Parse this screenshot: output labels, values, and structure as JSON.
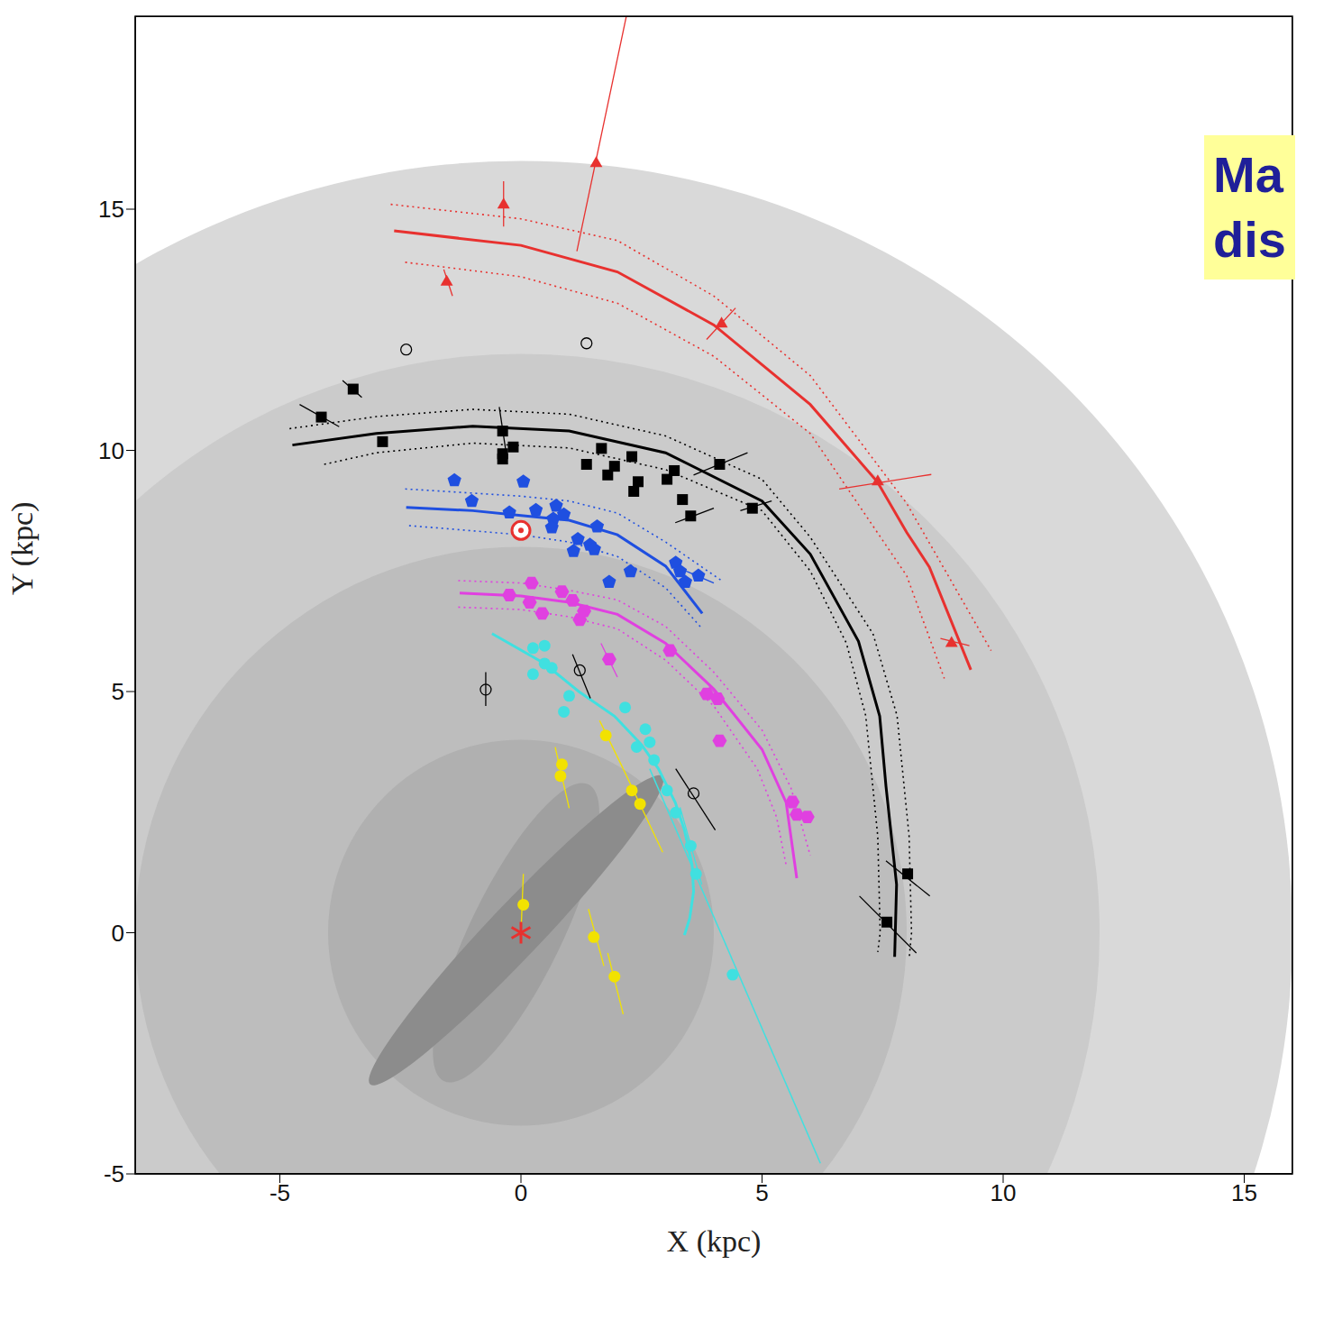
{
  "chart_data": {
    "type": "scatter",
    "x_label": "X (kpc)",
    "y_label": "Y (kpc)",
    "xlim": [
      -8,
      16
    ],
    "ylim": [
      -5,
      19
    ],
    "xticks": [
      -5,
      0,
      5,
      10,
      15
    ],
    "yticks": [
      -5,
      0,
      5,
      10,
      15
    ],
    "grid": false,
    "annotation": [
      "Ma",
      "dis"
    ],
    "regions": [
      {
        "shape": "circle",
        "x": 0,
        "y": 0,
        "radius": 16,
        "color": "#d9d9d9"
      },
      {
        "shape": "circle",
        "x": 0,
        "y": 0,
        "radius": 12,
        "color": "#cbcbcb"
      },
      {
        "shape": "circle",
        "x": 0,
        "y": 0,
        "radius": 8,
        "color": "#bdbdbd"
      },
      {
        "shape": "circle",
        "x": 0,
        "y": 0,
        "radius": 4,
        "color": "#b0b0b0"
      },
      {
        "shape": "ellipse",
        "x": -0.1,
        "y": 0,
        "half_length": 3.42,
        "half_width": 0.95,
        "position_angle": 64,
        "color": "#a0a0a0"
      },
      {
        "shape": "ellipse",
        "x": -0.1,
        "y": 0.05,
        "half_length": 4.4,
        "half_width": 0.55,
        "position_angle": 46.5,
        "color": "#8c8c8c"
      }
    ],
    "curves": [
      {
        "color": "#e8312f",
        "line_style": "solid",
        "x": [
          -2.63,
          0,
          2,
          4,
          6,
          7.39,
          8,
          8.47,
          9.33
        ],
        "y": [
          14.55,
          14.25,
          13.7,
          12.6,
          10.95,
          9.35,
          8.3,
          7.58,
          5.45
        ]
      },
      {
        "color": "#e8312f",
        "line_style": "dotted",
        "x": [
          -2.7,
          0,
          2,
          4,
          6,
          8,
          9.75
        ],
        "y": [
          15.1,
          14.8,
          14.35,
          13.2,
          11.55,
          8.9,
          5.85
        ]
      },
      {
        "color": "#e8312f",
        "line_style": "dotted",
        "x": [
          -2.4,
          0,
          2,
          4,
          6,
          8,
          8.78
        ],
        "y": [
          13.9,
          13.6,
          13.05,
          11.95,
          10.35,
          7.4,
          5.27
        ]
      },
      {
        "color": "#000000",
        "line_style": "solid",
        "x": [
          -4.74,
          -3,
          -1,
          1,
          3,
          5,
          6,
          7,
          7.44,
          7.57,
          7.79,
          7.75
        ],
        "y": [
          10.11,
          10.35,
          10.5,
          10.4,
          9.95,
          8.95,
          7.85,
          6.04,
          4.49,
          3.04,
          1,
          -0.5
        ]
      },
      {
        "color": "#000000",
        "line_style": "dotted",
        "x": [
          -4.8,
          -3,
          -1,
          1,
          3,
          5,
          6,
          7.3,
          7.8,
          8.05,
          8.1,
          8.05
        ],
        "y": [
          10.45,
          10.7,
          10.85,
          10.75,
          10.3,
          9.4,
          8.2,
          6.2,
          4.5,
          2,
          0,
          -0.55
        ]
      },
      {
        "color": "#000000",
        "line_style": "dotted",
        "x": [
          -4.08,
          -3,
          -1,
          1,
          3,
          5,
          6,
          6.75,
          7.15,
          7.4,
          7.45,
          7.4
        ],
        "y": [
          9.71,
          9.95,
          10.15,
          10.05,
          9.6,
          8.75,
          7.5,
          6,
          4.5,
          2,
          0,
          -0.4
        ]
      },
      {
        "color": "#1f4fe0",
        "line_style": "solid",
        "x": [
          -2.38,
          -1,
          0,
          1,
          2,
          3,
          3.76
        ],
        "y": [
          8.82,
          8.75,
          8.65,
          8.55,
          8.25,
          7.6,
          6.62
        ]
      },
      {
        "color": "#1f4fe0",
        "line_style": "dotted",
        "x": [
          -2.4,
          0,
          1,
          2,
          3,
          4.16
        ],
        "y": [
          9.2,
          9.05,
          8.95,
          8.7,
          8.1,
          7.3
        ]
      },
      {
        "color": "#1f4fe0",
        "line_style": "dotted",
        "x": [
          -2.32,
          0,
          1,
          2,
          3,
          3.76
        ],
        "y": [
          8.44,
          8.25,
          8.1,
          7.8,
          7.15,
          6.3
        ]
      },
      {
        "color": "#e040e0",
        "line_style": "solid",
        "x": [
          -1.27,
          0,
          1,
          2,
          3,
          4,
          5,
          5.5,
          5.72
        ],
        "y": [
          7.04,
          6.98,
          6.85,
          6.6,
          6,
          5.05,
          3.8,
          2.7,
          1.13
        ]
      },
      {
        "color": "#e040e0",
        "line_style": "dotted",
        "x": [
          -1.3,
          0,
          1,
          2,
          3,
          4,
          5,
          5.6,
          6
        ],
        "y": [
          7.3,
          7.25,
          7.1,
          6.9,
          6.35,
          5.4,
          4.2,
          3,
          1.6
        ]
      },
      {
        "color": "#e040e0",
        "line_style": "dotted",
        "x": [
          -1.3,
          0,
          1,
          2,
          3,
          4,
          4.9,
          5.3,
          5.5
        ],
        "y": [
          6.75,
          6.7,
          6.55,
          6.3,
          5.65,
          4.7,
          3.4,
          2.4,
          1.4
        ]
      },
      {
        "color": "#40e0e0",
        "line_style": "solid",
        "x": [
          -0.6,
          0.49,
          1.2,
          1.94,
          2.5,
          2.85,
          3.2,
          3.39,
          3.55,
          3.58,
          3.5,
          3.39
        ],
        "y": [
          6.2,
          5.58,
          5,
          4.49,
          3.9,
          3.4,
          2.7,
          2.13,
          1.4,
          0.85,
          0.3,
          -0.05
        ]
      },
      {
        "color": "#40e0e0",
        "line_style": "thin",
        "x": [
          2.67,
          6.21
        ],
        "y": [
          3.4,
          -4.78
        ]
      }
    ],
    "series": [
      {
        "color": "#e8312f",
        "marker": "triangle",
        "x": [
          -0.36,
          1.56,
          -1.54,
          4.16,
          7.4,
          8.93
        ],
        "y": [
          15.09,
          15.95,
          13.49,
          12.62,
          9.35,
          6
        ],
        "error_bars": [
          [
            [
              -0.36,
              15.58
            ],
            [
              -0.36,
              14.64
            ]
          ],
          [
            [
              2.27,
              19.4
            ],
            [
              1.16,
              14.13
            ]
          ],
          [
            [
              -1.6,
              13.75
            ],
            [
              -1.42,
              13.2
            ]
          ],
          [
            [
              4.45,
              12.95
            ],
            [
              3.85,
              12.3
            ]
          ],
          [
            [
              6.6,
              9.2
            ],
            [
              8.51,
              9.5
            ]
          ],
          [
            [
              8.7,
              6.1
            ],
            [
              9.3,
              5.95
            ]
          ]
        ]
      },
      {
        "color": "#000000",
        "marker": "square",
        "x": [
          -3.48,
          -4.14,
          -2.87,
          -0.38,
          -0.38,
          -0.38,
          -0.16,
          1.36,
          1.67,
          1.8,
          1.94,
          2.3,
          2.34,
          2.43,
          3.03,
          3.18,
          3.35,
          3.52,
          4.12,
          4.8,
          8.02,
          7.59
        ],
        "y": [
          11.27,
          10.69,
          10.18,
          10.4,
          9.93,
          9.82,
          10.07,
          9.71,
          10.04,
          9.49,
          9.67,
          9.87,
          9.15,
          9.35,
          9.4,
          9.58,
          8.98,
          8.64,
          9.71,
          8.8,
          1.22,
          0.22
        ],
        "error_bars": [
          [
            [
              -4.59,
              10.95
            ],
            [
              -3.77,
              10.49
            ]
          ],
          [
            [
              -3.7,
              11.45
            ],
            [
              -3.3,
              11.1
            ]
          ],
          [
            [
              -0.45,
              10.9
            ],
            [
              -0.3,
              9.9
            ]
          ],
          [
            [
              3.58,
              9.49
            ],
            [
              4.7,
              9.95
            ]
          ],
          [
            [
              3.2,
              8.5
            ],
            [
              4,
              8.8
            ]
          ],
          [
            [
              4.55,
              8.75
            ],
            [
              5.2,
              8.95
            ]
          ],
          [
            [
              7.57,
              1.49
            ],
            [
              8.48,
              0.76
            ]
          ],
          [
            [
              7.02,
              0.76
            ],
            [
              8.2,
              -0.42
            ]
          ]
        ]
      },
      {
        "color": "#1f4fe0",
        "marker": "pentagon",
        "x": [
          -1.38,
          -1.02,
          0.05,
          -0.24,
          0.31,
          0.73,
          0.67,
          0.64,
          0.89,
          1.09,
          1.18,
          1.43,
          1.58,
          1.52,
          1.83,
          2.27,
          3.21,
          3.3,
          3.68,
          3.41
        ],
        "y": [
          9.38,
          8.95,
          9.35,
          8.71,
          8.76,
          8.85,
          8.58,
          8.4,
          8.67,
          7.91,
          8.16,
          8.04,
          8.42,
          7.95,
          7.27,
          7.49,
          7.67,
          7.49,
          7.4,
          7.27
        ],
        "error_bars": [
          [
            [
              3.3,
              7.55
            ],
            [
              4,
              7.25
            ]
          ]
        ]
      },
      {
        "color": "#e040e0",
        "marker": "hexagon",
        "x": [
          -0.24,
          0.22,
          0.18,
          0.44,
          0.85,
          1.07,
          1.22,
          1.31,
          1.83,
          3.09,
          3.85,
          4.08,
          4.12,
          5.63,
          5.72,
          5.94
        ],
        "y": [
          7,
          7.25,
          6.85,
          6.62,
          7.07,
          6.89,
          6.49,
          6.67,
          5.67,
          5.85,
          4.95,
          4.85,
          3.98,
          2.71,
          2.45,
          2.4
        ],
        "error_bars": [
          [
            [
              1.66,
              6
            ],
            [
              2,
              5.3
            ]
          ],
          [
            [
              3.9,
              5.1
            ],
            [
              4.35,
              4.6
            ]
          ]
        ]
      },
      {
        "color": "#40e0e0",
        "marker": "circle",
        "x": [
          0.49,
          0.49,
          0.25,
          0.64,
          1,
          0.89,
          0.25,
          2.16,
          2.58,
          2.67,
          2.4,
          2.76,
          3.03,
          3.21,
          3.52,
          3.63,
          4.39
        ],
        "y": [
          5.95,
          5.58,
          5.36,
          5.49,
          4.91,
          4.58,
          5.9,
          4.67,
          4.22,
          3.95,
          3.85,
          3.58,
          2.95,
          2.49,
          1.8,
          1.22,
          -0.87
        ],
        "error_bars": [
          [
            [
              3.3,
              2.6
            ],
            [
              3.75,
              1
            ]
          ]
        ]
      },
      {
        "color": "#f2e200",
        "marker": "circle",
        "x": [
          0.85,
          0.82,
          1.76,
          2.3,
          2.47,
          0.05,
          1.51,
          1.94
        ],
        "y": [
          3.49,
          3.25,
          4.09,
          2.95,
          2.67,
          0.58,
          -0.09,
          -0.91
        ],
        "error_bars": [
          [
            [
              0.71,
              3.85
            ],
            [
              1,
              2.58
            ]
          ],
          [
            [
              1.63,
              4.4
            ],
            [
              2.12,
              3.4
            ]
          ],
          [
            [
              2.12,
              3.4
            ],
            [
              2.94,
              1.67
            ]
          ],
          [
            [
              0.05,
              1.22
            ],
            [
              0,
              -0.02
            ]
          ],
          [
            [
              1.4,
              0.49
            ],
            [
              1.72,
              -0.69
            ]
          ],
          [
            [
              1.8,
              -0.42
            ],
            [
              2.12,
              -1.69
            ]
          ]
        ]
      },
      {
        "color": "#000000",
        "marker": "open_circle",
        "x": [
          -2.38,
          1.36,
          -0.73,
          1.22,
          3.58
        ],
        "y": [
          12.09,
          12.22,
          5.04,
          5.44,
          2.89
        ],
        "error_bars": [
          [
            [
              -0.73,
              5.4
            ],
            [
              -0.73,
              4.7
            ]
          ],
          [
            [
              1.07,
              5.77
            ],
            [
              1.44,
              4.86
            ]
          ],
          [
            [
              3.21,
              3.4
            ],
            [
              4.03,
              2.13
            ]
          ]
        ]
      }
    ],
    "markers": [
      {
        "marker": "sun",
        "color": "#e8312f",
        "x": 0,
        "y": 8.34
      },
      {
        "marker": "asterisk",
        "color": "#e8312f",
        "x": 0,
        "y": 0
      }
    ]
  }
}
